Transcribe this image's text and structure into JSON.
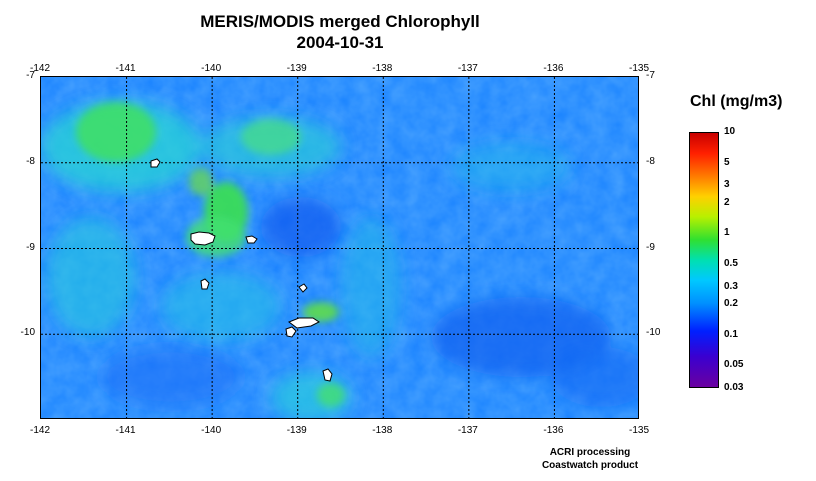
{
  "title": {
    "line1": "MERIS/MODIS merged Chlorophyll",
    "line2": "2004-10-31"
  },
  "axes": {
    "lon_ticks": [
      "-142",
      "-141",
      "-140",
      "-139",
      "-138",
      "-137",
      "-136",
      "-135"
    ],
    "lat_ticks": [
      "-7",
      "-8",
      "-9",
      "-10"
    ],
    "lon_range": [
      -142,
      -135
    ],
    "lat_range": [
      -7,
      -11
    ],
    "grid": true,
    "grid_style": "dotted"
  },
  "colorbar": {
    "title": "Chl (mg/m3)",
    "scale": "log",
    "labels": [
      "10",
      "5",
      "3",
      "2",
      "1",
      "0.5",
      "0.3",
      "0.2",
      "0.1",
      "0.05",
      "0.03"
    ],
    "range": [
      0.03,
      10
    ]
  },
  "credit": {
    "line1": "ACRI processing",
    "line2": "Coastwatch product"
  },
  "colors": {
    "ocean_base": "#1a8cff",
    "land": "#ffffff",
    "high_chl": "#33e066",
    "mid_chl": "#33cccc"
  }
}
